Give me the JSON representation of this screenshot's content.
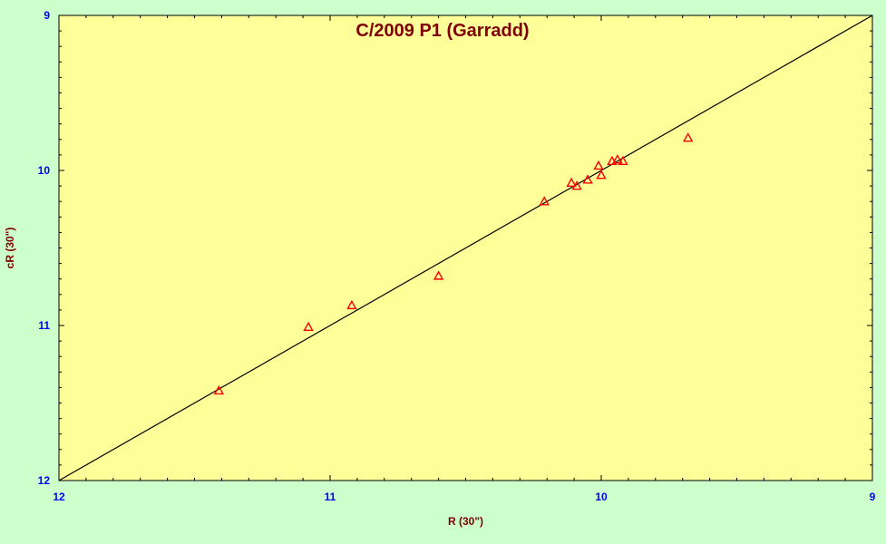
{
  "chart_data": {
    "type": "scatter",
    "title": "C/2009 P1 (Garradd)",
    "xlabel": "R (30\")",
    "ylabel": "cR (30\")",
    "xlim": [
      12,
      9
    ],
    "ylim": [
      12,
      9
    ],
    "x_ticks": [
      "12",
      "11",
      "10",
      "9"
    ],
    "y_ticks": [
      "9",
      "10",
      "11",
      "12"
    ],
    "grid": false,
    "reference_line": {
      "from": [
        12,
        12
      ],
      "to": [
        9,
        9
      ]
    },
    "points": [
      {
        "x": 11.41,
        "y": 11.42
      },
      {
        "x": 11.08,
        "y": 11.01
      },
      {
        "x": 10.92,
        "y": 10.87
      },
      {
        "x": 10.6,
        "y": 10.68
      },
      {
        "x": 10.21,
        "y": 10.2
      },
      {
        "x": 10.11,
        "y": 10.08
      },
      {
        "x": 10.09,
        "y": 10.1
      },
      {
        "x": 10.05,
        "y": 10.06
      },
      {
        "x": 10.01,
        "y": 9.97
      },
      {
        "x": 10.0,
        "y": 10.03
      },
      {
        "x": 9.96,
        "y": 9.94
      },
      {
        "x": 9.94,
        "y": 9.93
      },
      {
        "x": 9.92,
        "y": 9.94
      },
      {
        "x": 9.68,
        "y": 9.79
      }
    ],
    "colors": {
      "background": "#ccffcc",
      "plot_area": "#ffff99",
      "title": "#800000",
      "axis_title": "#800000",
      "tick_label": "#0000ff",
      "marker": "#ff0000",
      "line": "#000000"
    },
    "marker_shape": "triangle-open"
  }
}
